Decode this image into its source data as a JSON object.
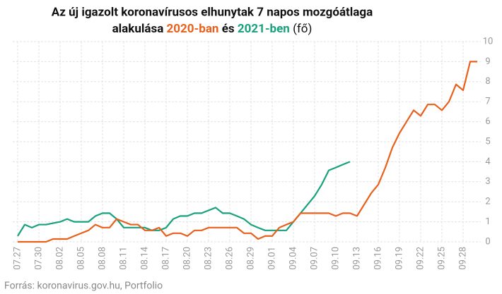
{
  "chart_data": {
    "type": "line",
    "title": [
      "Az új igazolt koronavírusos elhunytak 7 napos mozgóátlaga",
      "alakulása",
      "2020-ban",
      "és",
      "2021-ben",
      "(fő)"
    ],
    "source": "Forrás: koronavirus.gov.hu, Portfolio",
    "categories": [
      "07.27",
      null,
      null,
      "07.30",
      null,
      null,
      "08.02",
      null,
      null,
      "08.05",
      null,
      null,
      "08.08",
      null,
      null,
      "08.11",
      null,
      null,
      "08.14",
      null,
      null,
      "08.17",
      null,
      null,
      "08.20",
      null,
      null,
      "08.23",
      null,
      null,
      "08.26",
      null,
      null,
      "08.29",
      null,
      null,
      "09.01",
      null,
      null,
      "09.04",
      null,
      null,
      "09.07",
      null,
      null,
      "09.10",
      null,
      null,
      "09.13",
      null,
      null,
      "09.16",
      null,
      null,
      "09.19",
      null,
      null,
      "09.22",
      null,
      null,
      "09.25",
      null,
      null,
      "09.28",
      null,
      null
    ],
    "series": [
      {
        "name": "2020-ban",
        "color": "#e8601c",
        "values": [
          0,
          0,
          0,
          0,
          0,
          0.14,
          0.14,
          0.14,
          0.29,
          0.43,
          0.57,
          0.86,
          0.71,
          0.71,
          1.14,
          1.0,
          0.86,
          0.86,
          0.57,
          0.57,
          0.71,
          0.29,
          0.43,
          0.43,
          0.29,
          0.57,
          0.57,
          0.71,
          0.71,
          0.71,
          0.71,
          0.71,
          0.43,
          0.43,
          0.14,
          0.29,
          0.29,
          0.71,
          0.86,
          1.0,
          1.43,
          1.43,
          1.43,
          1.43,
          1.43,
          1.29,
          1.43,
          1.43,
          1.29,
          1.86,
          2.43,
          2.86,
          3.71,
          4.71,
          5.43,
          6.0,
          6.57,
          6.29,
          6.86,
          6.86,
          6.57,
          7.0,
          7.86,
          7.57,
          9.0,
          9.0
        ]
      },
      {
        "name": "2021-ben",
        "color": "#17a27b",
        "values": [
          0.29,
          0.86,
          0.71,
          0.86,
          0.86,
          0.93,
          1.0,
          1.14,
          1.0,
          1.0,
          1.0,
          1.29,
          1.43,
          1.43,
          1.14,
          0.71,
          0.71,
          0.71,
          0.71,
          0.57,
          0.57,
          0.71,
          1.14,
          1.29,
          1.29,
          1.43,
          1.43,
          1.57,
          1.71,
          1.43,
          1.43,
          1.29,
          1.14,
          0.86,
          0.71,
          0.57,
          0.57,
          0.57,
          0.57,
          1.0,
          1.43,
          1.86,
          2.29,
          2.86,
          3.57,
          3.71,
          3.86,
          4.0,
          null,
          null,
          null,
          null,
          null,
          null,
          null,
          null,
          null,
          null,
          null,
          null,
          null,
          null,
          null,
          null,
          null,
          null
        ]
      }
    ],
    "ylim": [
      0,
      10
    ],
    "yticks": [
      0,
      1,
      2,
      3,
      4,
      5,
      6,
      7,
      8,
      9,
      10
    ],
    "grid": true
  }
}
